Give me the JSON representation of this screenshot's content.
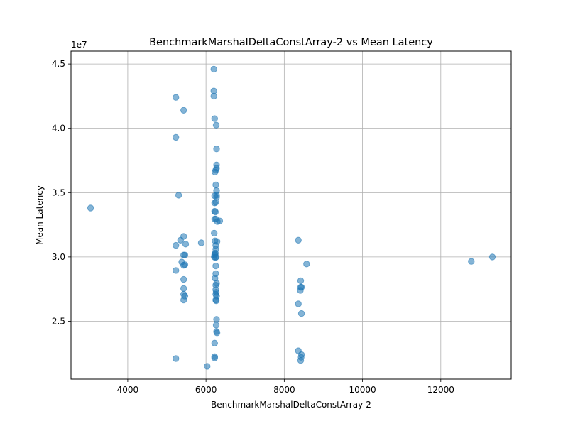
{
  "chart_data": {
    "type": "scatter",
    "title": "BenchmarkMarshalDeltaConstArray-2 vs Mean Latency",
    "xlabel": "BenchmarkMarshalDeltaConstArray-2",
    "ylabel": "Mean Latency",
    "y_offset_label": "1e7",
    "xlim": [
      2550,
      13800
    ],
    "ylim": [
      20500000.0,
      46000000.0
    ],
    "x_ticks": [
      4000,
      6000,
      8000,
      10000,
      12000
    ],
    "x_tick_labels": [
      "4000",
      "6000",
      "8000",
      "10000",
      "12000"
    ],
    "y_ticks": [
      25000000.0,
      30000000.0,
      35000000.0,
      40000000.0,
      45000000.0
    ],
    "y_tick_labels": [
      "2.5",
      "3.0",
      "3.5",
      "4.0",
      "4.5"
    ],
    "grid": true,
    "point_color": "#1f77b4",
    "point_alpha": 0.55,
    "series": [
      {
        "points": [
          [
            3050,
            33800000
          ],
          [
            5230,
            42400000
          ],
          [
            5230,
            39300000
          ],
          [
            5230,
            30900000
          ],
          [
            5230,
            28950000
          ],
          [
            5230,
            22100000
          ],
          [
            5300,
            34800000
          ],
          [
            5350,
            31300000
          ],
          [
            5380,
            29600000
          ],
          [
            5430,
            41400000
          ],
          [
            5430,
            31600000
          ],
          [
            5430,
            30150000
          ],
          [
            5430,
            29350000
          ],
          [
            5430,
            28250000
          ],
          [
            5430,
            27550000
          ],
          [
            5430,
            27100000
          ],
          [
            5430,
            26650000
          ],
          [
            5460,
            30150000
          ],
          [
            5460,
            29400000
          ],
          [
            5460,
            26950000
          ],
          [
            5480,
            31000000
          ],
          [
            5880,
            31100000
          ],
          [
            6030,
            21500000
          ],
          [
            6200,
            44600000
          ],
          [
            6200,
            42900000
          ],
          [
            6200,
            42500000
          ],
          [
            6220,
            40750000
          ],
          [
            6260,
            40250000
          ],
          [
            6270,
            38400000
          ],
          [
            6270,
            37150000
          ],
          [
            6270,
            36900000
          ],
          [
            6250,
            36750000
          ],
          [
            6230,
            36600000
          ],
          [
            6250,
            35600000
          ],
          [
            6270,
            35150000
          ],
          [
            6220,
            34750000
          ],
          [
            6270,
            34650000
          ],
          [
            6270,
            34800000
          ],
          [
            6220,
            34200000
          ],
          [
            6250,
            34250000
          ],
          [
            6220,
            33550000
          ],
          [
            6240,
            33500000
          ],
          [
            6220,
            32950000
          ],
          [
            6250,
            32950000
          ],
          [
            6290,
            32750000
          ],
          [
            6350,
            32800000
          ],
          [
            6210,
            31850000
          ],
          [
            6230,
            31250000
          ],
          [
            6280,
            31200000
          ],
          [
            6250,
            30900000
          ],
          [
            6250,
            30600000
          ],
          [
            6240,
            30300000
          ],
          [
            6230,
            30250000
          ],
          [
            6220,
            30150000
          ],
          [
            6210,
            30000000
          ],
          [
            6240,
            29950000
          ],
          [
            6260,
            30000000
          ],
          [
            6250,
            29300000
          ],
          [
            6250,
            28700000
          ],
          [
            6230,
            28350000
          ],
          [
            6270,
            27950000
          ],
          [
            6250,
            27800000
          ],
          [
            6250,
            27450000
          ],
          [
            6260,
            27250000
          ],
          [
            6250,
            27100000
          ],
          [
            6270,
            26950000
          ],
          [
            6250,
            26650000
          ],
          [
            6260,
            26600000
          ],
          [
            6270,
            25150000
          ],
          [
            6260,
            24700000
          ],
          [
            6270,
            24200000
          ],
          [
            6280,
            24100000
          ],
          [
            6220,
            23300000
          ],
          [
            6220,
            22250000
          ],
          [
            6220,
            22150000
          ],
          [
            8360,
            31300000
          ],
          [
            8360,
            26350000
          ],
          [
            8360,
            22700000
          ],
          [
            8420,
            28150000
          ],
          [
            8420,
            27650000
          ],
          [
            8410,
            27400000
          ],
          [
            8440,
            27650000
          ],
          [
            8440,
            25600000
          ],
          [
            8440,
            22400000
          ],
          [
            8430,
            22200000
          ],
          [
            8420,
            21950000
          ],
          [
            8570,
            29450000
          ],
          [
            12780,
            29650000
          ],
          [
            13320,
            30000000
          ]
        ]
      }
    ]
  }
}
